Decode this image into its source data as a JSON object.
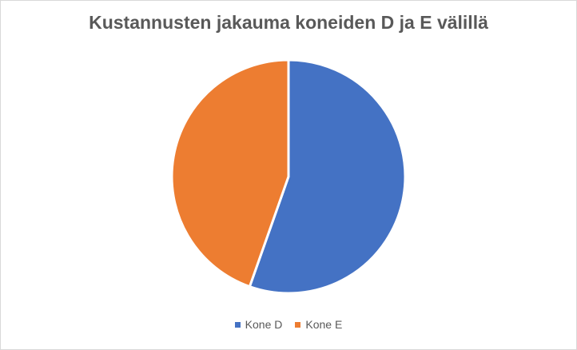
{
  "chart_data": {
    "type": "pie",
    "title": "Kustannusten jakauma koneiden D ja E välillä",
    "categories": [
      "Kone D",
      "Kone E"
    ],
    "values": [
      55.4,
      44.6
    ],
    "colors": [
      "#4472C4",
      "#ED7D31"
    ],
    "legend_position": "bottom"
  }
}
